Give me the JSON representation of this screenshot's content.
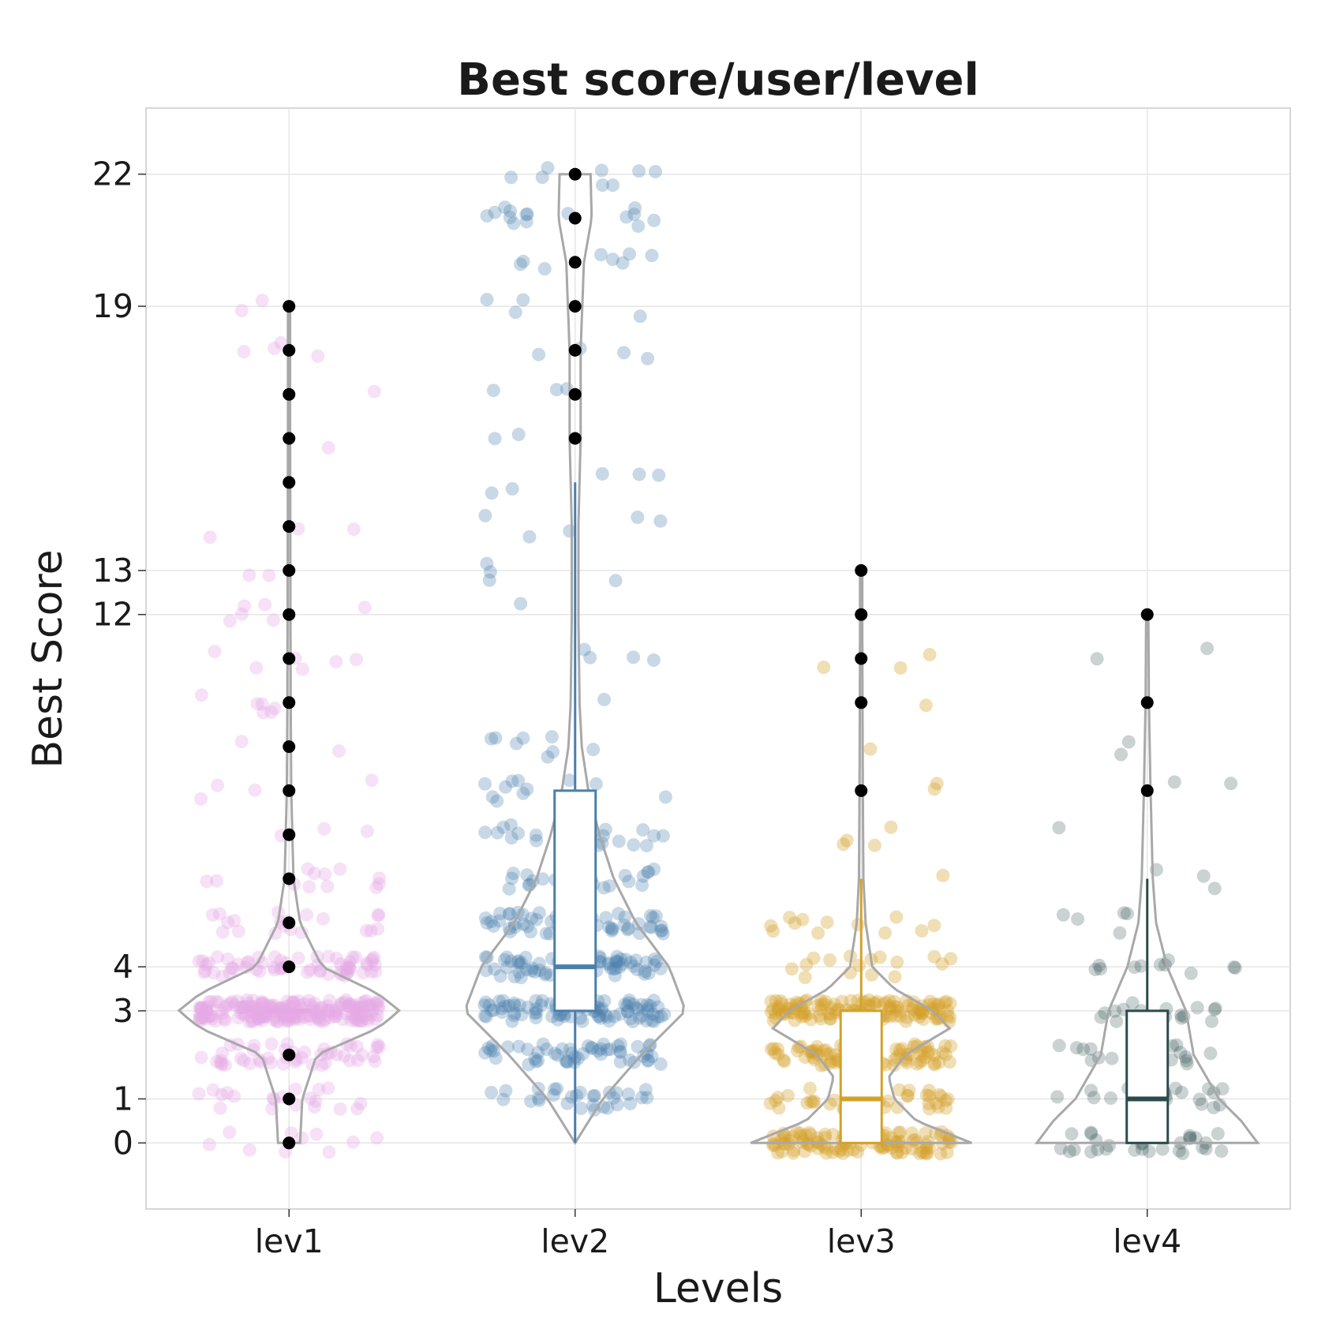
{
  "chart_data": {
    "type": "violin",
    "title": "Best score/user/level",
    "xlabel": "Levels",
    "ylabel": "Best Score",
    "categories": [
      "lev1",
      "lev2",
      "lev3",
      "lev4"
    ],
    "y_ticks": [
      0,
      1,
      3,
      4,
      12,
      13,
      19,
      22
    ],
    "ylim": [
      -1.5,
      23.5
    ],
    "grid": true,
    "series": [
      {
        "category": "lev1",
        "color": "#e4a8e4",
        "box": {
          "min": 3,
          "q1": 3,
          "median": 3,
          "q3": 3,
          "max": 3
        },
        "outliers": [
          0,
          1,
          2,
          4,
          5,
          6,
          7,
          8,
          9,
          10,
          11,
          12,
          13,
          14,
          15,
          16,
          17,
          18,
          19
        ],
        "violin_max": 19
      },
      {
        "category": "lev2",
        "color": "#4a7fab",
        "box": {
          "min": 0,
          "q1": 3,
          "median": 4,
          "q3": 8,
          "max": 15
        },
        "outliers": [
          16,
          17,
          18,
          19,
          20,
          21,
          22
        ],
        "violin_max": 22
      },
      {
        "category": "lev3",
        "color": "#d4a12a",
        "box": {
          "min": 0,
          "q1": 0,
          "median": 1,
          "q3": 3,
          "max": 6
        },
        "outliers": [
          8,
          10,
          11,
          12,
          13
        ],
        "violin_max": 13
      },
      {
        "category": "lev4",
        "color": "#2b4a4a",
        "box": {
          "min": 0,
          "q1": 0,
          "median": 1,
          "q3": 3,
          "max": 6
        },
        "outliers": [
          8,
          10,
          12
        ],
        "violin_max": 12
      }
    ]
  }
}
